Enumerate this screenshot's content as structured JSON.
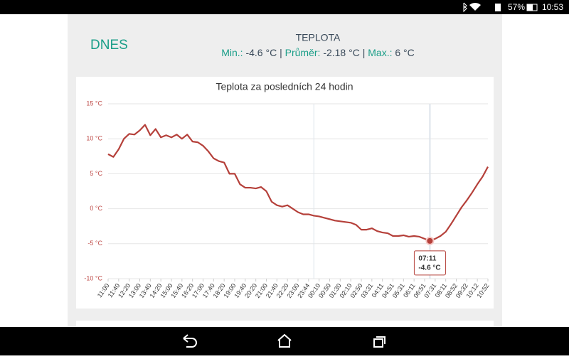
{
  "status_bar": {
    "battery": "57%",
    "time": "10:53"
  },
  "header": {
    "today": "DNES",
    "title": "TEPLOTA",
    "min_label": "Min.:",
    "min": "-4.6 °C",
    "sep1": "|",
    "avg_label": "Průměr:",
    "avg": "-2.18 °C",
    "sep2": "|",
    "max_label": "Max.:",
    "max": "6 °C"
  },
  "chart_data": {
    "type": "line",
    "title": "Teplota za posledních 24 hodin",
    "categories": [
      "11:00",
      null,
      "11:40",
      null,
      "12:20",
      null,
      "13:00",
      null,
      "13:40",
      null,
      "14:20",
      null,
      "15:00",
      null,
      "15:40",
      null,
      "16:20",
      null,
      "17:00",
      null,
      "17:40",
      null,
      "18:20",
      null,
      "19:00",
      null,
      "19:40",
      null,
      "20:20",
      null,
      "21:00",
      null,
      "21:40",
      null,
      "22:20",
      null,
      "23:00",
      null,
      "23:44",
      null,
      "00:10",
      null,
      "00:50",
      null,
      "01:30",
      null,
      "02:10",
      null,
      "02:50",
      null,
      "03:31",
      null,
      "04:11",
      null,
      "04:51",
      null,
      "05:31",
      null,
      "06:11",
      null,
      "06:51",
      null,
      "07:31",
      null,
      "08:11",
      null,
      "08:52",
      null,
      "09:32",
      null,
      "10:12",
      null,
      "10:52"
    ],
    "series": [
      {
        "color": "#b5403a",
        "values": [
          7.8,
          7.4,
          8.5,
          10.0,
          10.7,
          10.6,
          11.2,
          12.0,
          10.5,
          11.4,
          10.2,
          10.5,
          10.2,
          10.6,
          10.0,
          10.6,
          9.6,
          9.5,
          9.0,
          8.2,
          7.2,
          6.8,
          6.6,
          5.0,
          5.0,
          3.5,
          3.0,
          3.0,
          2.9,
          3.1,
          2.5,
          1.0,
          0.5,
          0.3,
          0.5,
          0.0,
          -0.5,
          -0.8,
          -0.8,
          -1.0,
          -1.1,
          -1.3,
          -1.5,
          -1.7,
          -1.8,
          -1.9,
          -2.0,
          -2.3,
          -3.0,
          -3.0,
          -2.8,
          -3.2,
          -3.4,
          -3.5,
          -3.9,
          -3.9,
          -3.8,
          -4.0,
          -3.9,
          -4.0,
          -4.3,
          -4.6,
          -4.3,
          -3.9,
          -3.3,
          -2.2,
          -1.0,
          0.2,
          1.2,
          2.3,
          3.5,
          4.6,
          6.0
        ]
      }
    ],
    "ylim": [
      -10,
      15
    ],
    "yticks": [
      {
        "value": 15,
        "label": "15 °C"
      },
      {
        "value": 10,
        "label": "10 °C"
      },
      {
        "value": 5,
        "label": "5 °C"
      },
      {
        "value": 0,
        "label": "0 °C"
      },
      {
        "value": -5,
        "label": "-5 °C"
      },
      {
        "value": -10,
        "label": "-10 °C"
      }
    ],
    "grid": true,
    "tooltip": {
      "time": "07:11",
      "value": -4.6,
      "value_label": "-4.6 °C"
    }
  }
}
